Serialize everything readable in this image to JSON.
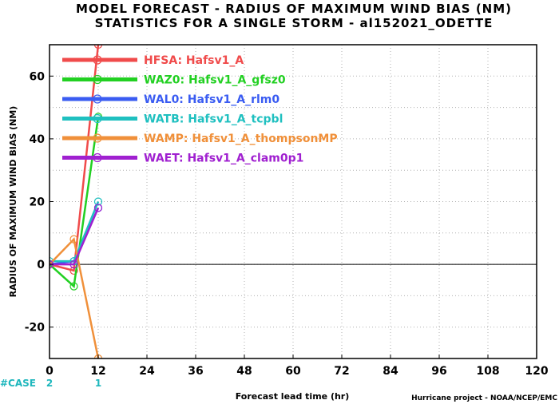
{
  "chart_data": {
    "type": "line",
    "title": "MODEL FORECAST - RADIUS OF MAXIMUM WIND BIAS (NM)",
    "subtitle": "STATISTICS FOR A SINGLE STORM - al152021_ODETTE",
    "xlabel": "Forecast lead time (hr)",
    "ylabel": "RADIUS OF MAXIMUM WIND BIAS (NM)",
    "xlim": [
      0,
      120
    ],
    "ylim": [
      -30,
      70
    ],
    "x_ticks": [
      0,
      12,
      24,
      36,
      48,
      60,
      72,
      84,
      96,
      108,
      120
    ],
    "y_ticks": [
      -20,
      0,
      20,
      40,
      60
    ],
    "grid": true,
    "legend_position": "top-left",
    "case_label": "#CASE",
    "case_counts": [
      {
        "x": 0,
        "label": "2"
      },
      {
        "x": 12,
        "label": "1"
      }
    ],
    "footer": "Hurricane project - NOAA/NCEP/EMC",
    "x": [
      0,
      6,
      12
    ],
    "series": [
      {
        "id": "HFSA",
        "legend": "HFSA: Hafsv1_A",
        "color": "#f04b4b",
        "values": [
          0,
          -2,
          70
        ]
      },
      {
        "id": "WAZ0",
        "legend": "WAZ0: Hafsv1_A_gfsz0",
        "color": "#22d022",
        "values": [
          0,
          -7,
          47
        ]
      },
      {
        "id": "WAL0",
        "legend": "WAL0: Hafsv1_A_rlm0",
        "color": "#3a5cf2",
        "values": [
          0,
          1,
          18
        ]
      },
      {
        "id": "WATB",
        "legend": "WATB: Hafsv1_A_tcpbl",
        "color": "#1fc0c0",
        "values": [
          1,
          1,
          20
        ]
      },
      {
        "id": "WAMP",
        "legend": "WAMP: Hafsv1_A_thompsonMP",
        "color": "#f0903a",
        "values": [
          0,
          8,
          -30
        ]
      },
      {
        "id": "WAET",
        "legend": "WAET: Hafsv1_A_clam0p1",
        "color": "#a020d0",
        "values": [
          0,
          0,
          18
        ]
      }
    ]
  }
}
